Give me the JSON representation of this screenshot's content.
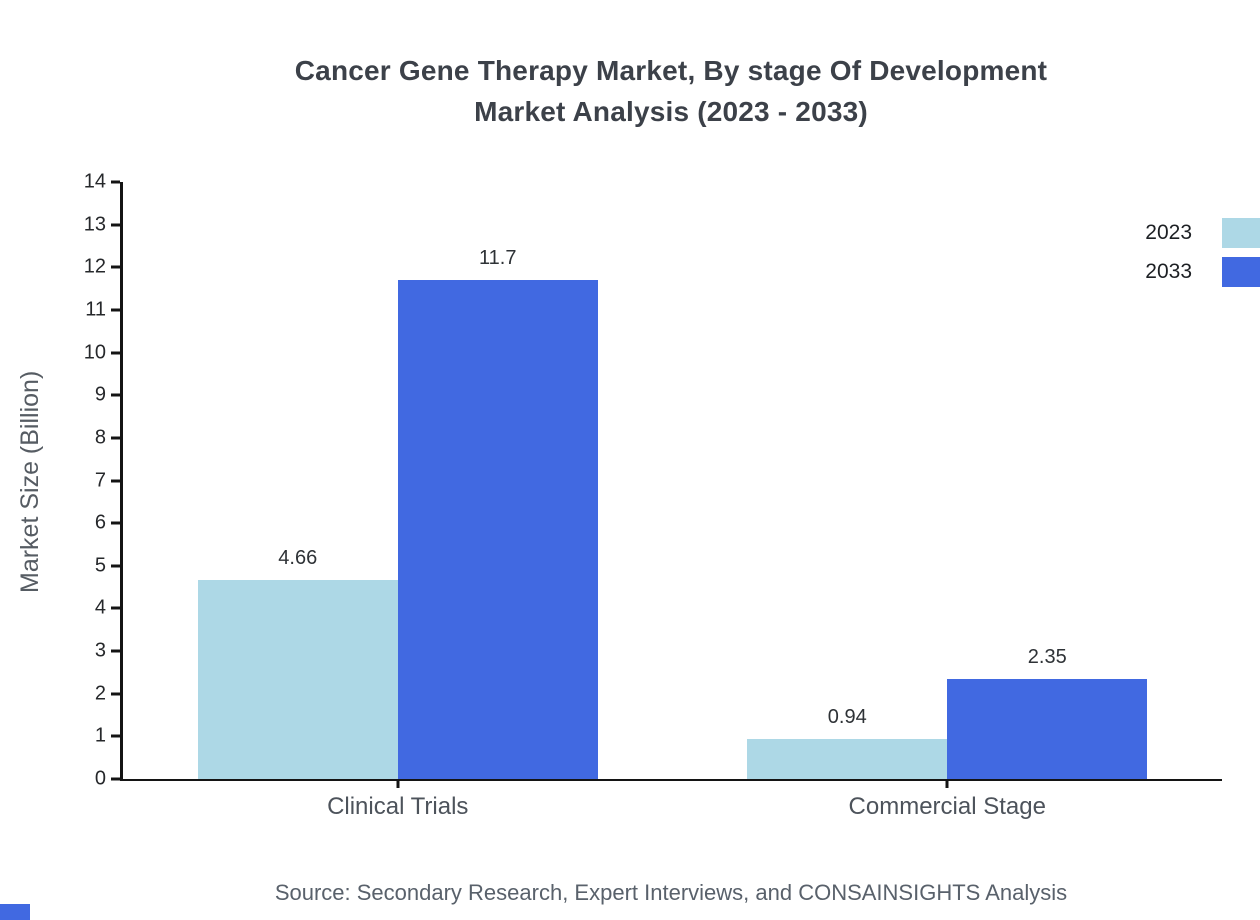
{
  "title": {
    "line1": "Cancer Gene Therapy Market, By stage Of Development",
    "line2": "Market Analysis (2023 - 2033)"
  },
  "chart_data": {
    "type": "bar",
    "categories": [
      "Clinical Trials",
      "Commercial Stage"
    ],
    "series": [
      {
        "name": "2023",
        "color": "#ADD8E6",
        "values": [
          4.66,
          0.94
        ]
      },
      {
        "name": "2033",
        "color": "#4169E1",
        "values": [
          11.7,
          2.35
        ]
      }
    ],
    "title": "Cancer Gene Therapy Market, By stage Of Development Market Analysis (2023 - 2033)",
    "xlabel": "",
    "ylabel": "Market Size (Billion)",
    "ylim": [
      0,
      14
    ],
    "ytick_step": 1,
    "grid": false,
    "legend_position": "top-right",
    "value_labels": [
      [
        "4.66",
        "0.94"
      ],
      [
        "11.7",
        "2.35"
      ]
    ]
  },
  "footer": {
    "source": "Source: Secondary Research, Expert Interviews, and CONSAINSIGHTS Analysis"
  }
}
